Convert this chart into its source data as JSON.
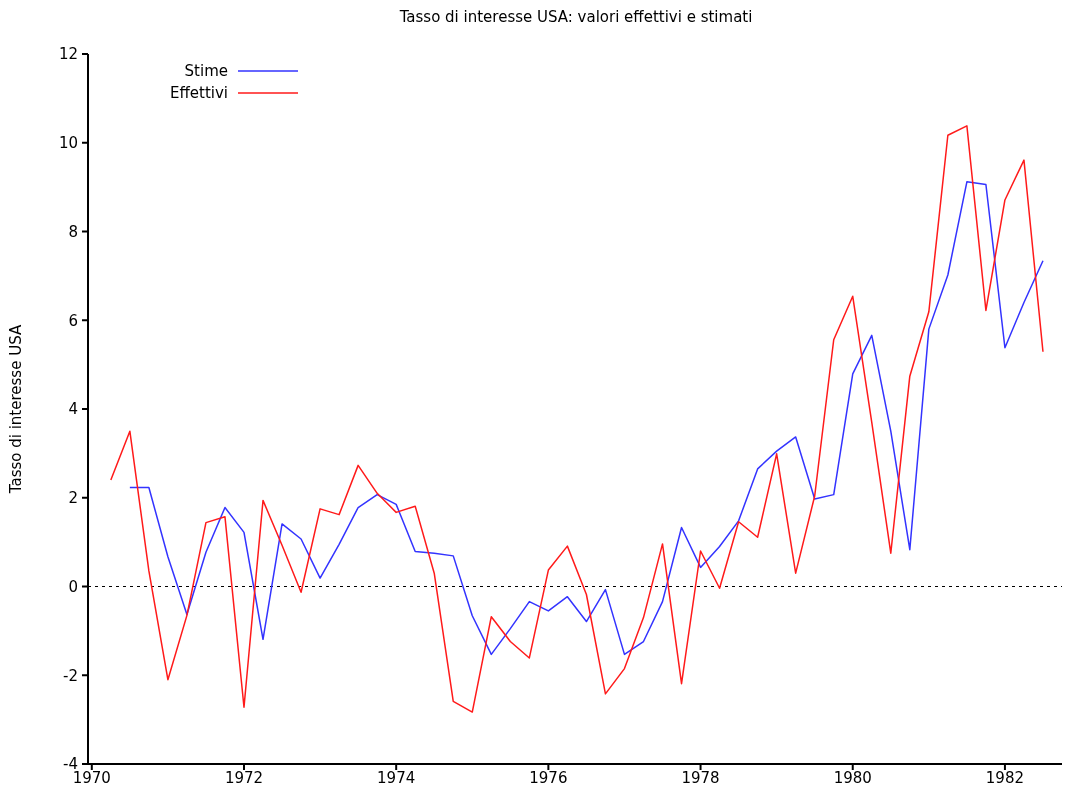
{
  "chart_data": {
    "type": "line",
    "title": "Tasso di interesse USA: valori effettivi e stimati",
    "ylabel": "Tasso di interesse USA",
    "x": [
      1970.25,
      1970.5,
      1970.75,
      1971,
      1971.25,
      1971.5,
      1971.75,
      1972,
      1972.25,
      1972.5,
      1972.75,
      1973,
      1973.25,
      1973.5,
      1973.75,
      1974,
      1974.25,
      1974.5,
      1974.75,
      1975,
      1975.25,
      1975.5,
      1975.75,
      1976,
      1976.25,
      1976.5,
      1976.75,
      1977,
      1977.25,
      1977.5,
      1977.75,
      1978,
      1978.25,
      1978.5,
      1978.75,
      1979,
      1979.25,
      1979.5,
      1979.75,
      1980,
      1980.25,
      1980.5,
      1980.75,
      1981,
      1981.25,
      1981.5,
      1981.75,
      1982,
      1982.25,
      1982.5
    ],
    "series": [
      {
        "name": "Stime",
        "color": "#3333ff",
        "values": [
          null,
          2.23,
          2.23,
          0.67,
          -0.63,
          0.77,
          1.78,
          1.22,
          -1.19,
          1.41,
          1.07,
          0.19,
          0.95,
          1.78,
          2.07,
          1.85,
          0.79,
          0.75,
          0.69,
          -0.66,
          -1.53,
          -0.95,
          -0.34,
          -0.55,
          -0.23,
          -0.79,
          -0.07,
          -1.53,
          -1.24,
          -0.34,
          1.33,
          0.43,
          0.9,
          1.48,
          2.65,
          3.05,
          3.37,
          1.97,
          2.07,
          4.79,
          5.66,
          3.5,
          0.83,
          5.8,
          7.02,
          9.12,
          9.06,
          5.38,
          6.4,
          7.34
        ]
      },
      {
        "name": "Effettivi",
        "color": "#ff1a1a",
        "values": [
          2.4,
          3.5,
          0.35,
          -2.1,
          -0.65,
          1.44,
          1.57,
          -2.72,
          1.94,
          0.93,
          -0.13,
          1.75,
          1.62,
          2.73,
          2.1,
          1.67,
          1.81,
          0.3,
          -2.59,
          -2.83,
          -0.68,
          -1.24,
          -1.61,
          0.37,
          0.91,
          -0.18,
          -2.42,
          -1.85,
          -0.7,
          0.96,
          -2.19,
          0.8,
          -0.04,
          1.46,
          1.11,
          2.99,
          0.3,
          2.04,
          5.56,
          6.54,
          3.7,
          0.75,
          4.74,
          6.19,
          10.17,
          10.38,
          6.22,
          8.71,
          9.61,
          5.29
        ]
      }
    ],
    "xlim": [
      1969.95,
      1982.75
    ],
    "xticks": [
      1970,
      1972,
      1974,
      1976,
      1978,
      1980,
      1982
    ],
    "ylim": [
      -4,
      12
    ],
    "yticks": [
      -4,
      -2,
      0,
      2,
      4,
      6,
      8,
      10,
      12
    ],
    "ref_lines": [
      {
        "axis": "y",
        "value": 0,
        "line_style": "dotted",
        "color": "#000000"
      }
    ],
    "grid": false,
    "legend": "top left"
  }
}
